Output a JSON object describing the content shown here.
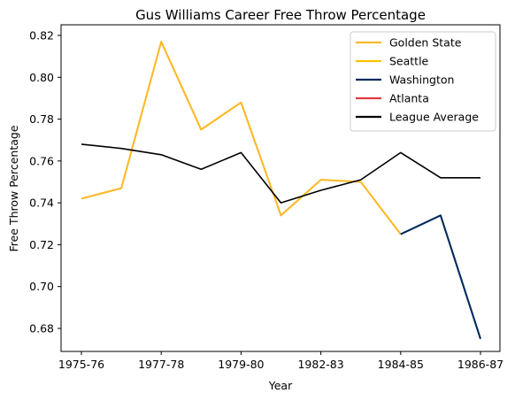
{
  "chart_data": {
    "type": "line",
    "title": "Gus Williams  Career Free Throw Percentage",
    "xlabel": "Year",
    "ylabel": "Free Throw Percentage",
    "x_tick_labels": [
      "1975-76",
      "1977-78",
      "1979-80",
      "1982-83",
      "1984-85",
      "1986-87"
    ],
    "ylim": [
      0.668,
      0.825
    ],
    "yticks": [
      "0.68",
      "0.70",
      "0.72",
      "0.74",
      "0.76",
      "0.78",
      "0.80",
      "0.82"
    ],
    "legend_position": "top-right",
    "grid": false,
    "series": [
      {
        "name": "Golden State",
        "color": "#FDB927",
        "points": [
          [
            0,
            0.742
          ],
          [
            1,
            0.747
          ],
          [
            2,
            0.817
          ],
          [
            3,
            0.775
          ],
          [
            4,
            0.788
          ],
          [
            5,
            0.734
          ],
          [
            6,
            0.751
          ],
          [
            7,
            0.75
          ],
          [
            8,
            0.725
          ]
        ]
      },
      {
        "name": "Seattle",
        "color": "#FFC200",
        "points": []
      },
      {
        "name": "Washington",
        "color": "#002B5C",
        "points": [
          [
            8,
            0.725
          ],
          [
            9,
            0.734
          ],
          [
            10,
            0.675
          ]
        ]
      },
      {
        "name": "Atlanta",
        "color": "#E03A3E",
        "points": []
      },
      {
        "name": "League Average",
        "color": "#000000",
        "points": [
          [
            0,
            0.768
          ],
          [
            1,
            0.766
          ],
          [
            2,
            0.763
          ],
          [
            3,
            0.756
          ],
          [
            4,
            0.764
          ],
          [
            5,
            0.74
          ],
          [
            6,
            0.746
          ],
          [
            7,
            0.751
          ],
          [
            8,
            0.764
          ],
          [
            9,
            0.752
          ],
          [
            10,
            0.752
          ]
        ]
      }
    ]
  }
}
